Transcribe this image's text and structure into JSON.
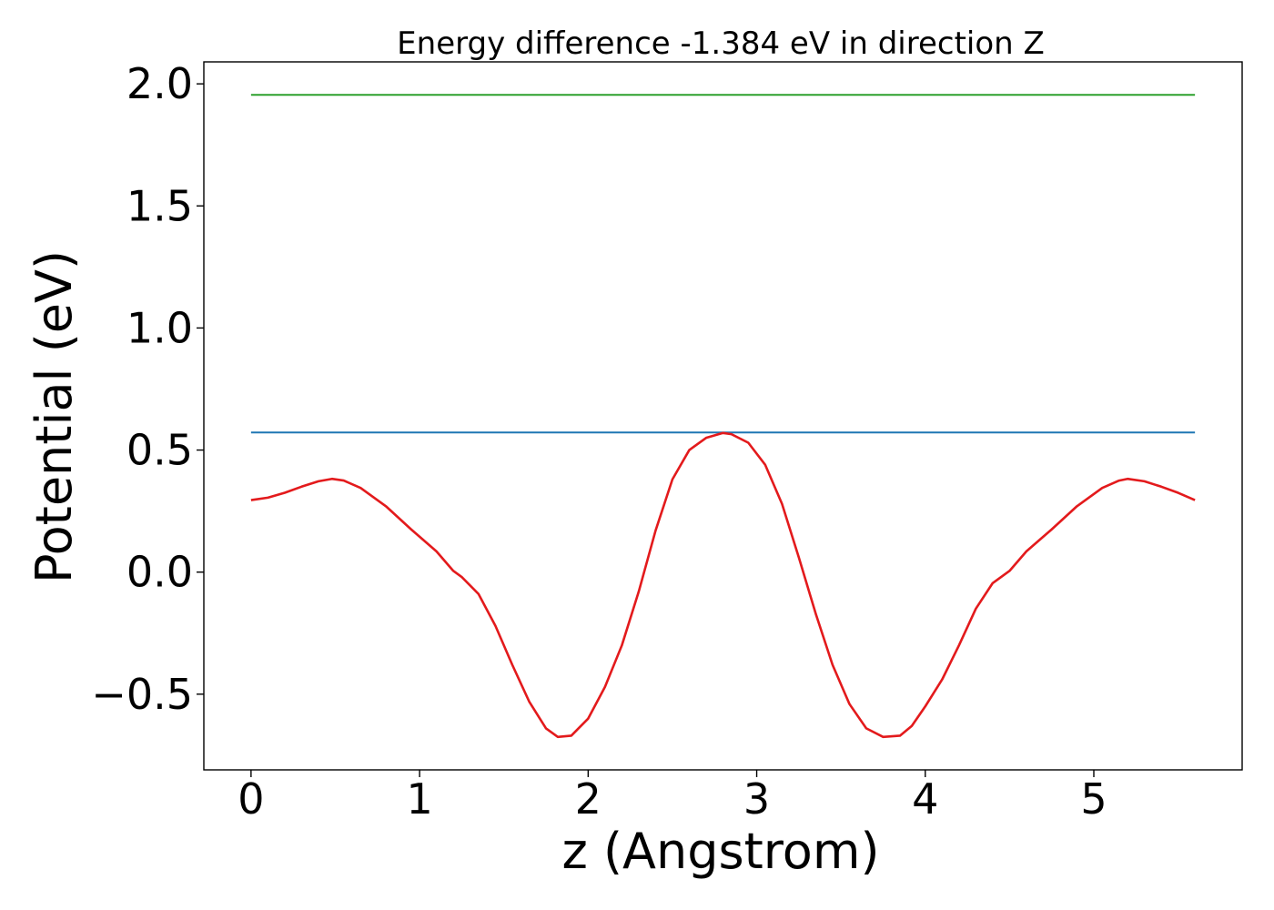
{
  "chart_data": {
    "type": "line",
    "title": "Energy difference -1.384 eV in direction Z",
    "xlabel": "z (Angstrom)",
    "ylabel": "Potential (eV)",
    "xlim": [
      -0.28,
      5.88
    ],
    "ylim": [
      -0.81,
      2.09
    ],
    "xticks": [
      0,
      1,
      2,
      3,
      4,
      5
    ],
    "xtick_labels": [
      "0",
      "1",
      "2",
      "3",
      "4",
      "5"
    ],
    "yticks": [
      -0.5,
      0.0,
      0.5,
      1.0,
      1.5,
      2.0
    ],
    "ytick_labels": [
      "−0.5",
      "0.0",
      "0.5",
      "1.0",
      "1.5",
      "2.0"
    ],
    "grid": false,
    "legend": "none",
    "series": [
      {
        "color": "#2ca02c",
        "style": "horizontal",
        "x": [
          0,
          5.6
        ],
        "y": [
          1.955,
          1.955
        ]
      },
      {
        "color": "#1f77b4",
        "style": "horizontal",
        "x": [
          0,
          5.6
        ],
        "y": [
          0.572,
          0.572
        ]
      },
      {
        "color": "#e31a1c",
        "style": "curve",
        "x": [
          0,
          0.1,
          0.2,
          0.3,
          0.4,
          0.48,
          0.55,
          0.65,
          0.8,
          0.95,
          1.1,
          1.2,
          1.25,
          1.35,
          1.45,
          1.55,
          1.65,
          1.75,
          1.82,
          1.9,
          2.0,
          2.1,
          2.2,
          2.3,
          2.4,
          2.5,
          2.6,
          2.7,
          2.8,
          2.85,
          2.95,
          3.05,
          3.15,
          3.25,
          3.35,
          3.45,
          3.55,
          3.65,
          3.75,
          3.85,
          3.92,
          4.0,
          4.1,
          4.2,
          4.3,
          4.4,
          4.45,
          4.5,
          4.6,
          4.75,
          4.9,
          5.05,
          5.15,
          5.2,
          5.3,
          5.4,
          5.5,
          5.6
        ],
        "y": [
          0.295,
          0.305,
          0.325,
          0.35,
          0.372,
          0.382,
          0.375,
          0.345,
          0.27,
          0.175,
          0.085,
          0.005,
          -0.02,
          -0.09,
          -0.22,
          -0.38,
          -0.53,
          -0.64,
          -0.675,
          -0.67,
          -0.6,
          -0.47,
          -0.3,
          -0.08,
          0.17,
          0.38,
          0.5,
          0.55,
          0.57,
          0.565,
          0.53,
          0.44,
          0.28,
          0.06,
          -0.17,
          -0.38,
          -0.54,
          -0.64,
          -0.675,
          -0.67,
          -0.63,
          -0.55,
          -0.44,
          -0.3,
          -0.15,
          -0.045,
          -0.02,
          0.005,
          0.085,
          0.175,
          0.27,
          0.345,
          0.375,
          0.382,
          0.372,
          0.35,
          0.325,
          0.295
        ]
      }
    ]
  }
}
